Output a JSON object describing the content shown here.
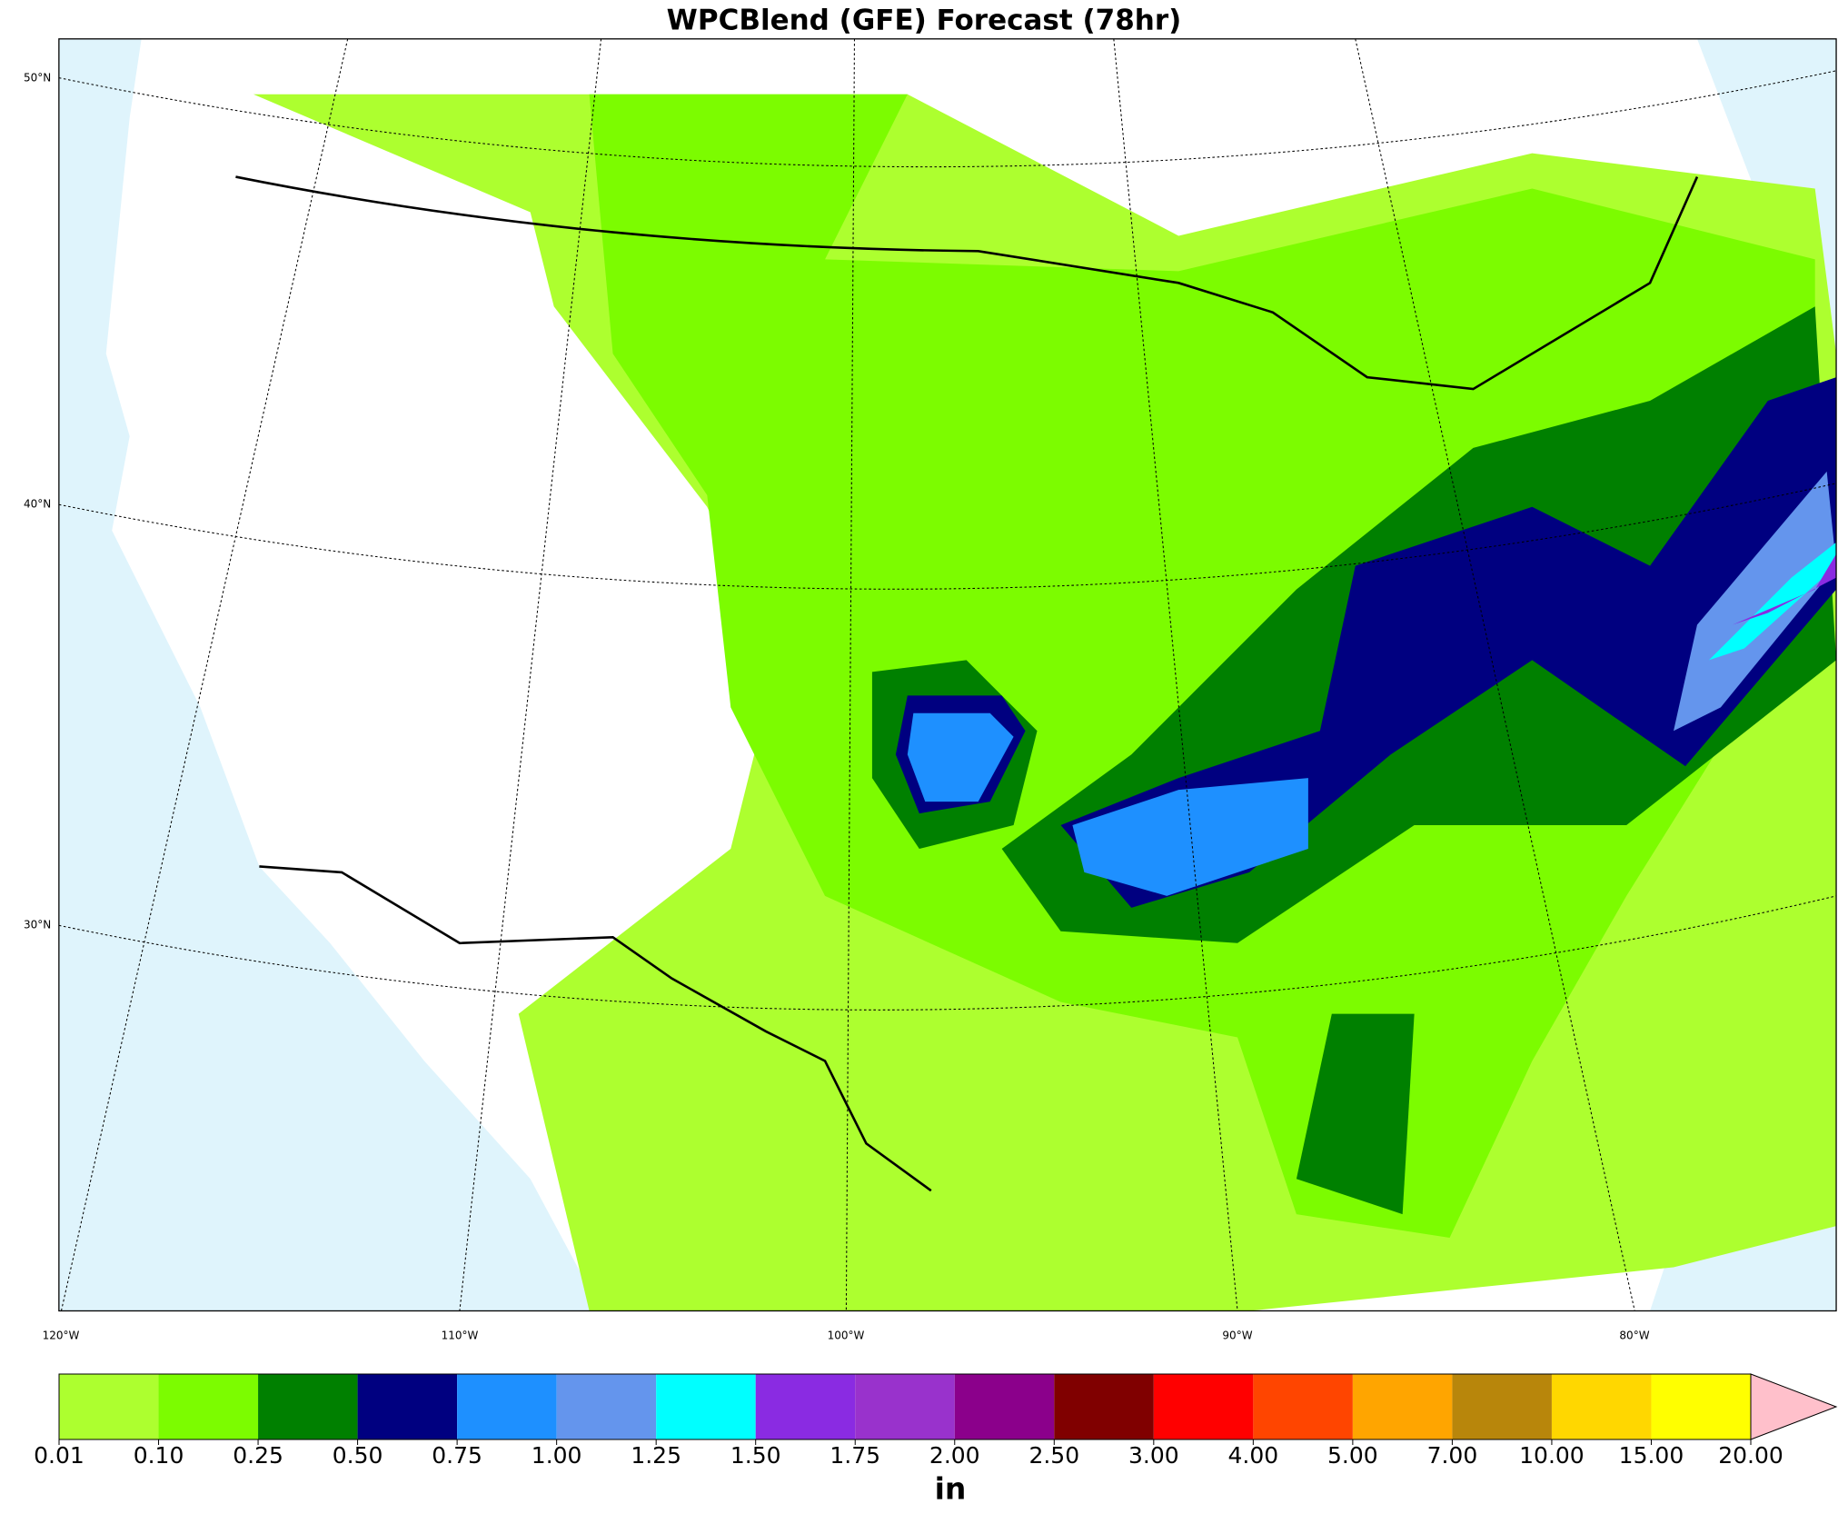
{
  "title": "WPCBlend (GFE) Forecast (78hr)",
  "map": {
    "lat_labels": [
      "50°N",
      "40°N",
      "30°N"
    ],
    "lon_labels": [
      "120°W",
      "110°W",
      "100°W",
      "90°W",
      "80°W"
    ]
  },
  "colorbar": {
    "label": "in",
    "ticks": [
      0.01,
      {
        "value": 0.1,
        "label": "0.10"
      },
      0.25,
      {
        "value": 0.5,
        "label": "0.50"
      },
      0.75,
      {
        "value": 1,
        "label": "1.00"
      },
      1.25,
      {
        "value": 1.5,
        "label": "1.50"
      },
      1.75,
      {
        "value": 2,
        "label": "2.00"
      },
      {
        "value": 2.5,
        "label": "2.50"
      },
      {
        "value": 3,
        "label": "3.00"
      },
      {
        "value": 4,
        "label": "4.00"
      },
      {
        "value": 5,
        "label": "5.00"
      },
      {
        "value": 7,
        "label": "7.00"
      },
      {
        "value": 10,
        "label": "10.00"
      },
      {
        "value": 15,
        "label": "15.00"
      },
      {
        "value": 20,
        "label": "20.00"
      }
    ],
    "colors": [
      "#adff2f",
      "#7cfc00",
      "#008000",
      "#000080",
      "#1e90ff",
      "#6495ed",
      "#00ffff",
      "#8a2be2",
      "#9932cc",
      "#8b008b",
      "#800000",
      "#ff0000",
      "#ff4500",
      "#ffa500",
      "#b8860b",
      "#ffd700",
      "#ffff00"
    ],
    "extend_color": "#ffc0cb"
  }
}
